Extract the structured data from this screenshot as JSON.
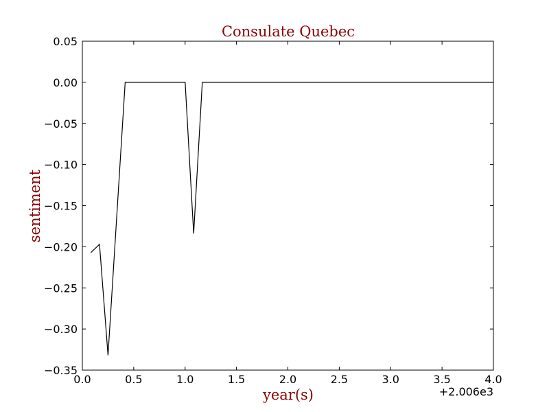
{
  "chart_data": {
    "type": "line",
    "title": "Consulate Quebec",
    "xlabel": "year(s)",
    "ylabel": "sentiment",
    "x_offset_label": "+2.006e3",
    "xlim": [
      0.0,
      4.0
    ],
    "ylim": [
      -0.35,
      0.05
    ],
    "x_ticks": [
      0.0,
      0.5,
      1.0,
      1.5,
      2.0,
      2.5,
      3.0,
      3.5,
      4.0
    ],
    "x_tick_labels": [
      "0.0",
      "0.5",
      "1.0",
      "1.5",
      "2.0",
      "2.5",
      "3.0",
      "3.5",
      "4.0"
    ],
    "y_ticks": [
      0.05,
      0.0,
      -0.05,
      -0.1,
      -0.15,
      -0.2,
      -0.25,
      -0.3,
      -0.35
    ],
    "y_tick_labels": [
      "0.05",
      "0.00",
      "−0.05",
      "−0.10",
      "−0.15",
      "−0.20",
      "−0.25",
      "−0.30",
      "−0.35"
    ],
    "grid": false,
    "series": [
      {
        "x": [
          0.083,
          0.167,
          0.25,
          0.417,
          1.0,
          1.083,
          1.167,
          4.0
        ],
        "y": [
          -0.207,
          -0.197,
          -0.332,
          0.0,
          0.0,
          -0.184,
          0.0,
          0.0
        ]
      }
    ],
    "colors": {
      "line": "#000000",
      "title": "#8b0000",
      "axis_label": "#8b0000"
    }
  }
}
